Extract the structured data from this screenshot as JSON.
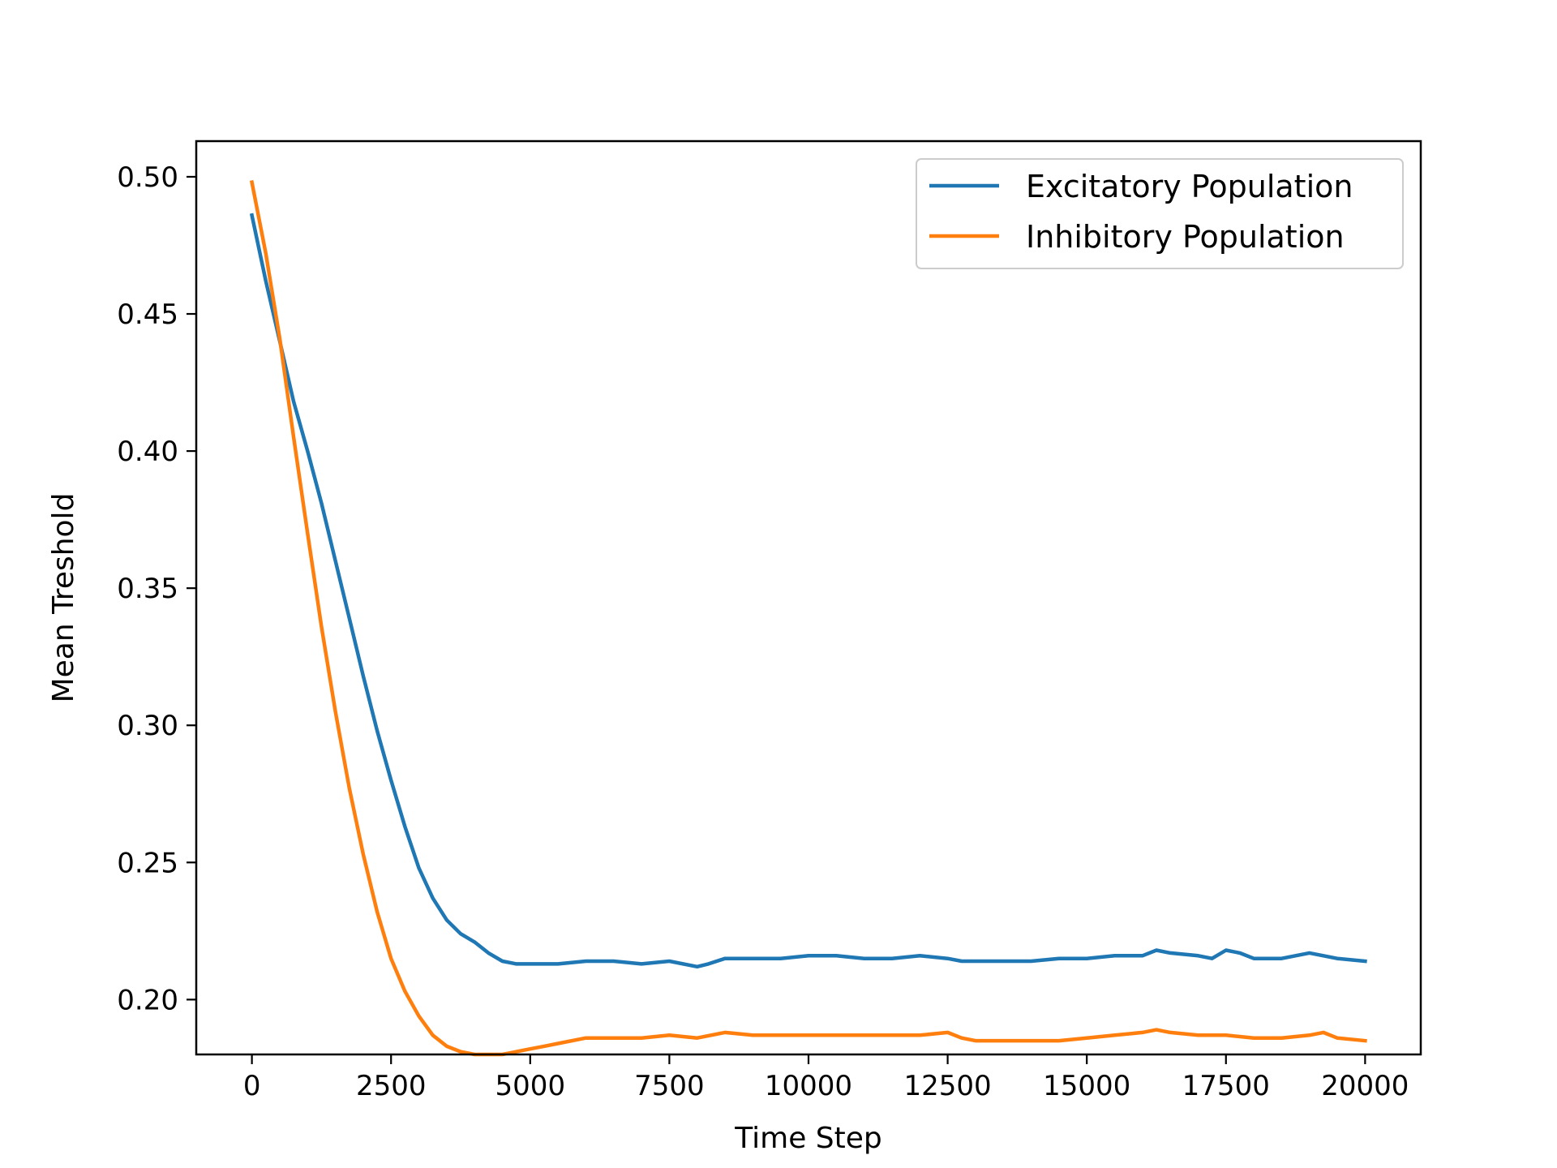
{
  "chart_data": {
    "type": "line",
    "title": "",
    "xlabel": "Time Step",
    "ylabel": "Mean Treshold",
    "xlim": [
      -1000,
      21000
    ],
    "ylim": [
      0.18,
      0.513
    ],
    "xticks": [
      0,
      2500,
      5000,
      7500,
      10000,
      12500,
      15000,
      17500,
      20000
    ],
    "xtick_labels": [
      "0",
      "2500",
      "5000",
      "7500",
      "10000",
      "12500",
      "15000",
      "17500",
      "20000"
    ],
    "yticks": [
      0.2,
      0.25,
      0.3,
      0.35,
      0.4,
      0.45,
      0.5
    ],
    "ytick_labels": [
      "0.20",
      "0.25",
      "0.30",
      "0.35",
      "0.40",
      "0.45",
      "0.50"
    ],
    "grid": false,
    "legend_position": "top-right",
    "series": [
      {
        "name": "Excitatory Population",
        "color": "#1f77b4",
        "x": [
          0,
          250,
          500,
          750,
          1000,
          1250,
          1500,
          1750,
          2000,
          2250,
          2500,
          2750,
          3000,
          3250,
          3500,
          3750,
          4000,
          4250,
          4500,
          4750,
          5000,
          5500,
          6000,
          6500,
          7000,
          7500,
          8000,
          8200,
          8500,
          9000,
          9500,
          10000,
          10500,
          11000,
          11500,
          12000,
          12500,
          12750,
          13000,
          13500,
          14000,
          14500,
          15000,
          15500,
          16000,
          16250,
          16500,
          17000,
          17250,
          17500,
          17750,
          18000,
          18500,
          19000,
          19250,
          19500,
          20000
        ],
        "y": [
          0.486,
          0.462,
          0.44,
          0.418,
          0.4,
          0.381,
          0.36,
          0.339,
          0.318,
          0.298,
          0.28,
          0.263,
          0.248,
          0.237,
          0.229,
          0.224,
          0.221,
          0.217,
          0.214,
          0.213,
          0.213,
          0.213,
          0.214,
          0.214,
          0.213,
          0.214,
          0.212,
          0.213,
          0.215,
          0.215,
          0.215,
          0.216,
          0.216,
          0.215,
          0.215,
          0.216,
          0.215,
          0.214,
          0.214,
          0.214,
          0.214,
          0.215,
          0.215,
          0.216,
          0.216,
          0.218,
          0.217,
          0.216,
          0.215,
          0.218,
          0.217,
          0.215,
          0.215,
          0.217,
          0.216,
          0.215,
          0.214
        ]
      },
      {
        "name": "Inhibitory Population",
        "color": "#ff7f0e",
        "x": [
          0,
          250,
          500,
          750,
          1000,
          1250,
          1500,
          1750,
          2000,
          2250,
          2500,
          2750,
          3000,
          3250,
          3500,
          3750,
          4000,
          4250,
          4500,
          4750,
          5000,
          5250,
          5500,
          6000,
          6500,
          7000,
          7500,
          8000,
          8500,
          9000,
          9500,
          10000,
          10500,
          11000,
          11500,
          12000,
          12500,
          12750,
          13000,
          13500,
          14000,
          14500,
          15000,
          15500,
          16000,
          16250,
          16500,
          17000,
          17500,
          18000,
          18500,
          19000,
          19250,
          19500,
          20000
        ],
        "y": [
          0.498,
          0.472,
          0.441,
          0.405,
          0.37,
          0.336,
          0.305,
          0.277,
          0.253,
          0.232,
          0.215,
          0.203,
          0.194,
          0.187,
          0.183,
          0.181,
          0.18,
          0.18,
          0.18,
          0.181,
          0.182,
          0.183,
          0.184,
          0.186,
          0.186,
          0.186,
          0.187,
          0.186,
          0.188,
          0.187,
          0.187,
          0.187,
          0.187,
          0.187,
          0.187,
          0.187,
          0.188,
          0.186,
          0.185,
          0.185,
          0.185,
          0.185,
          0.186,
          0.187,
          0.188,
          0.189,
          0.188,
          0.187,
          0.187,
          0.186,
          0.186,
          0.187,
          0.188,
          0.186,
          0.185
        ]
      }
    ]
  }
}
